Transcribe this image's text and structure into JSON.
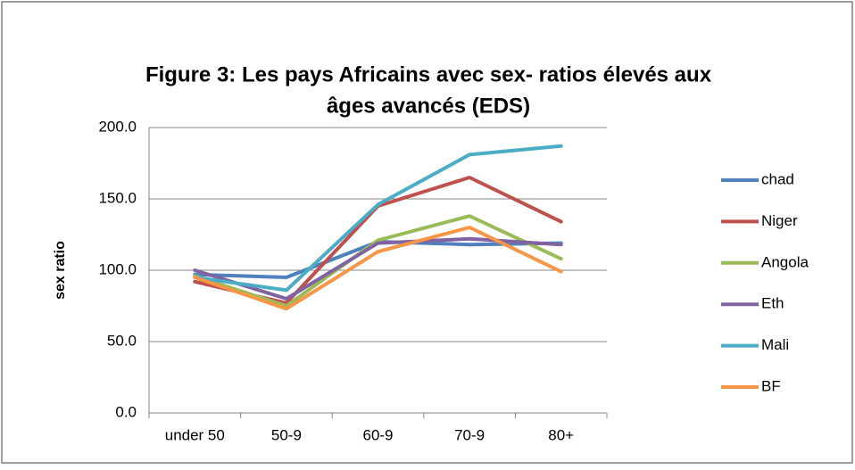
{
  "chart_data": {
    "type": "line",
    "title": [
      "Figure 3: Les pays Africains avec sex- ratios élevés aux",
      "âges avancés  (EDS)"
    ],
    "y_label": "sex ratio",
    "categories": [
      "under 50",
      "50-9",
      "60-9",
      "70-9",
      "80+"
    ],
    "series": [
      {
        "name": "chad",
        "color": "#4f81bd",
        "values": [
          97,
          95,
          120,
          118,
          119
        ]
      },
      {
        "name": "Niger",
        "color": "#c0504d",
        "values": [
          92,
          77,
          145,
          165,
          134
        ]
      },
      {
        "name": "Angola",
        "color": "#9bbb59",
        "values": [
          96,
          75,
          121,
          138,
          108
        ]
      },
      {
        "name": "Eth",
        "color": "#8064a2",
        "values": [
          100,
          80,
          119,
          122,
          118
        ]
      },
      {
        "name": "Mali",
        "color": "#4bacc6",
        "values": [
          95,
          86,
          146,
          181,
          187
        ]
      },
      {
        "name": "BF",
        "color": "#f79646",
        "values": [
          95,
          73,
          113,
          130,
          99
        ]
      }
    ],
    "ylim": [
      0,
      200
    ],
    "yticks": [
      {
        "value": 0,
        "label": "0.0"
      },
      {
        "value": 50,
        "label": "50.0"
      },
      {
        "value": 100,
        "label": "100.0"
      },
      {
        "value": 150,
        "label": "150.0"
      },
      {
        "value": 200,
        "label": "200.0"
      }
    ],
    "grid": true,
    "legend": "right"
  }
}
